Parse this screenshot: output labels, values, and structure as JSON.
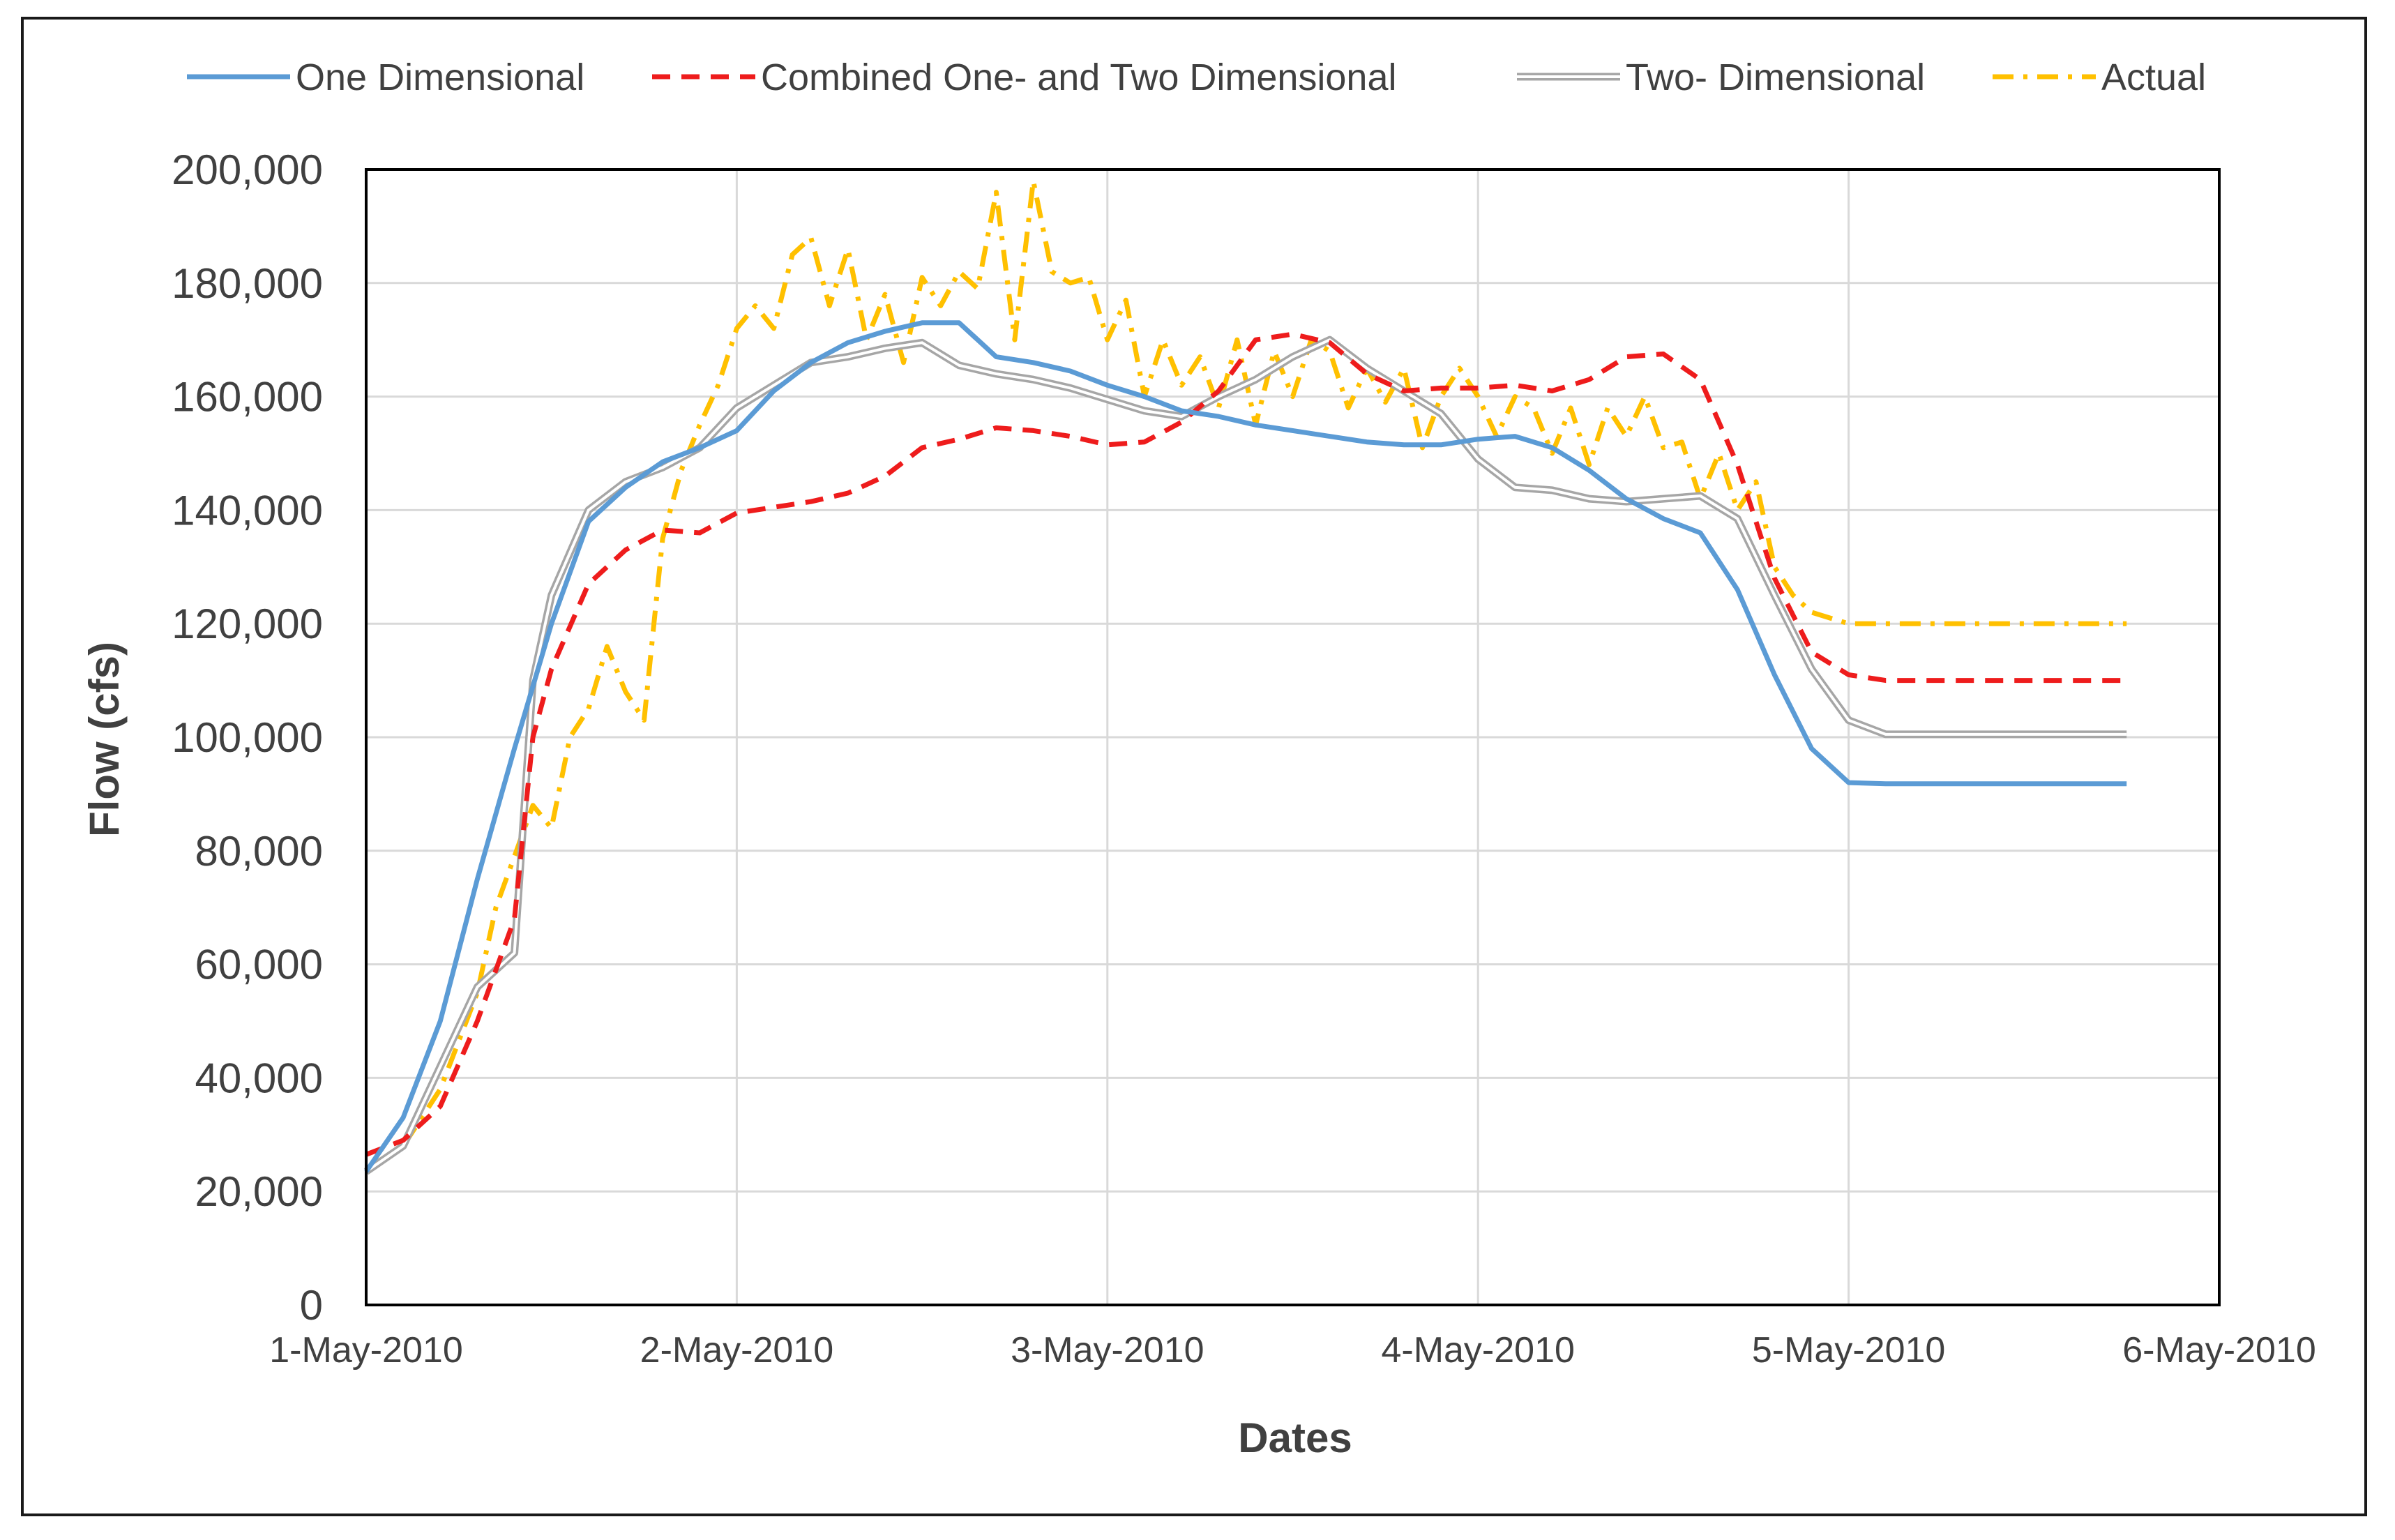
{
  "chart_data": {
    "type": "line",
    "title": "",
    "xlabel": "Dates",
    "ylabel": "Flow (cfs)",
    "xlim": [
      0,
      5
    ],
    "ylim": [
      0,
      200000
    ],
    "grid": true,
    "legend_position": "top",
    "x_ticks": [
      {
        "x": 0,
        "label": "1-May-2010"
      },
      {
        "x": 1,
        "label": "2-May-2010"
      },
      {
        "x": 2,
        "label": "3-May-2010"
      },
      {
        "x": 3,
        "label": "4-May-2010"
      },
      {
        "x": 4,
        "label": "5-May-2010"
      },
      {
        "x": 5,
        "label": "6-May-2010"
      }
    ],
    "y_ticks": [
      {
        "y": 0,
        "label": "0"
      },
      {
        "y": 20000,
        "label": "20,000"
      },
      {
        "y": 40000,
        "label": "40,000"
      },
      {
        "y": 60000,
        "label": "60,000"
      },
      {
        "y": 80000,
        "label": "80,000"
      },
      {
        "y": 100000,
        "label": "100,000"
      },
      {
        "y": 120000,
        "label": "120,000"
      },
      {
        "y": 140000,
        "label": "140,000"
      },
      {
        "y": 160000,
        "label": "160,000"
      },
      {
        "y": 180000,
        "label": "180,000"
      },
      {
        "y": 200000,
        "label": "200,000"
      }
    ],
    "series": [
      {
        "name": "One Dimensional",
        "color": "#5b9bd5",
        "style": "solid",
        "x": [
          0,
          0.1,
          0.2,
          0.3,
          0.4,
          0.5,
          0.6,
          0.7,
          0.8,
          0.9,
          1.0,
          1.1,
          1.2,
          1.3,
          1.4,
          1.5,
          1.6,
          1.7,
          1.8,
          1.9,
          2.0,
          2.1,
          2.2,
          2.3,
          2.4,
          2.5,
          2.6,
          2.7,
          2.8,
          2.9,
          3.0,
          3.1,
          3.2,
          3.3,
          3.4,
          3.5,
          3.6,
          3.7,
          3.8,
          3.9,
          4.0,
          4.1,
          4.2,
          4.3,
          4.4,
          4.5,
          4.6,
          4.7,
          4.75
        ],
        "y": [
          23500,
          33000,
          50000,
          75000,
          98000,
          120000,
          138000,
          144000,
          148500,
          151000,
          154000,
          161000,
          166000,
          169500,
          171500,
          173000,
          173000,
          167000,
          166000,
          164500,
          162000,
          160000,
          157500,
          156500,
          155000,
          154000,
          153000,
          152000,
          151500,
          151500,
          152500,
          153000,
          151000,
          147000,
          142000,
          138500,
          136000,
          126000,
          111000,
          98000,
          92000,
          91800,
          91800,
          91800,
          91800,
          91800,
          91800,
          91800,
          91800
        ]
      },
      {
        "name": "Combined One- and Two Dimensional",
        "color": "#ee1c1c",
        "style": "dashed",
        "x": [
          0,
          0.1,
          0.2,
          0.3,
          0.4,
          0.45,
          0.5,
          0.6,
          0.7,
          0.8,
          0.9,
          1.0,
          1.1,
          1.2,
          1.3,
          1.4,
          1.5,
          1.6,
          1.7,
          1.8,
          1.9,
          2.0,
          2.1,
          2.2,
          2.3,
          2.4,
          2.5,
          2.6,
          2.7,
          2.8,
          2.9,
          3.0,
          3.1,
          3.2,
          3.3,
          3.4,
          3.5,
          3.6,
          3.7,
          3.8,
          3.9,
          4.0,
          4.1,
          4.2,
          4.3,
          4.4,
          4.5,
          4.6,
          4.7,
          4.75
        ],
        "y": [
          26500,
          29000,
          35000,
          50000,
          68000,
          100000,
          112000,
          127000,
          133000,
          136500,
          136000,
          139500,
          140500,
          141500,
          143000,
          146000,
          151000,
          152500,
          154500,
          154000,
          153000,
          151500,
          152000,
          155500,
          161000,
          170000,
          171000,
          169500,
          164000,
          161000,
          161500,
          161500,
          162000,
          161000,
          163000,
          167000,
          167500,
          163000,
          148000,
          128000,
          115000,
          111000,
          110000,
          110000,
          110000,
          110000,
          110000,
          110000,
          110000,
          110000
        ]
      },
      {
        "name": "Two- Dimensional",
        "color": "#a6a6a6",
        "style": "double",
        "x": [
          0,
          0.1,
          0.2,
          0.3,
          0.4,
          0.45,
          0.5,
          0.6,
          0.7,
          0.8,
          0.9,
          1.0,
          1.1,
          1.2,
          1.3,
          1.4,
          1.5,
          1.6,
          1.7,
          1.8,
          1.9,
          2.0,
          2.1,
          2.2,
          2.3,
          2.4,
          2.5,
          2.6,
          2.7,
          2.8,
          2.9,
          3.0,
          3.1,
          3.2,
          3.3,
          3.4,
          3.5,
          3.6,
          3.7,
          3.8,
          3.9,
          4.0,
          4.1,
          4.2,
          4.3,
          4.4,
          4.5,
          4.6,
          4.7,
          4.75
        ],
        "y": [
          23500,
          28000,
          42000,
          56000,
          62000,
          110000,
          125000,
          140000,
          145000,
          147500,
          151000,
          158000,
          162000,
          166000,
          167000,
          168500,
          169500,
          165500,
          164000,
          163000,
          161500,
          159500,
          157500,
          156500,
          160000,
          163000,
          167000,
          170000,
          165000,
          161000,
          157000,
          149000,
          144000,
          143500,
          142000,
          141500,
          142000,
          142500,
          138500,
          125000,
          112000,
          103000,
          100500,
          100500,
          100500,
          100500,
          100500,
          100500,
          100500,
          100500
        ]
      },
      {
        "name": "Actual",
        "color": "#ffc000",
        "style": "dashdot",
        "x": [
          0,
          0.1,
          0.2,
          0.3,
          0.35,
          0.4,
          0.45,
          0.5,
          0.55,
          0.6,
          0.65,
          0.7,
          0.75,
          0.8,
          0.85,
          0.9,
          0.95,
          1.0,
          1.05,
          1.1,
          1.15,
          1.2,
          1.25,
          1.3,
          1.35,
          1.4,
          1.45,
          1.5,
          1.55,
          1.6,
          1.65,
          1.7,
          1.75,
          1.8,
          1.85,
          1.9,
          1.95,
          2.0,
          2.05,
          2.1,
          2.15,
          2.2,
          2.25,
          2.3,
          2.35,
          2.4,
          2.45,
          2.5,
          2.55,
          2.6,
          2.65,
          2.7,
          2.75,
          2.8,
          2.85,
          2.9,
          2.95,
          3.0,
          3.05,
          3.1,
          3.15,
          3.2,
          3.25,
          3.3,
          3.35,
          3.4,
          3.45,
          3.5,
          3.55,
          3.6,
          3.65,
          3.7,
          3.75,
          3.8,
          3.85,
          3.9,
          3.95,
          4.0,
          4.05,
          4.1,
          4.15,
          4.2,
          4.25,
          4.3,
          4.35,
          4.4,
          4.45,
          4.5,
          4.55,
          4.6,
          4.65,
          4.7,
          4.75
        ],
        "y": [
          24000,
          28000,
          38000,
          55000,
          70000,
          79000,
          88000,
          84000,
          100000,
          105000,
          116000,
          108000,
          103000,
          135000,
          147000,
          155000,
          162000,
          172000,
          176000,
          172000,
          185000,
          188000,
          176000,
          186000,
          170000,
          178000,
          166000,
          181000,
          176000,
          182000,
          179000,
          196000,
          170000,
          198000,
          182000,
          180000,
          181000,
          170000,
          177000,
          160000,
          170000,
          162000,
          167000,
          158000,
          170000,
          155000,
          168000,
          160000,
          170000,
          168000,
          158000,
          165000,
          159000,
          165000,
          151000,
          160000,
          165000,
          160000,
          153000,
          160000,
          158000,
          150000,
          158000,
          148000,
          158000,
          153000,
          160000,
          151000,
          152000,
          142000,
          150000,
          140000,
          145000,
          130000,
          125000,
          122000,
          121000,
          120000,
          120000,
          120000,
          120000,
          120000,
          120000,
          120000,
          120000,
          120000,
          120000,
          120000,
          120000,
          120000,
          120000,
          120000,
          120000
        ]
      }
    ]
  }
}
